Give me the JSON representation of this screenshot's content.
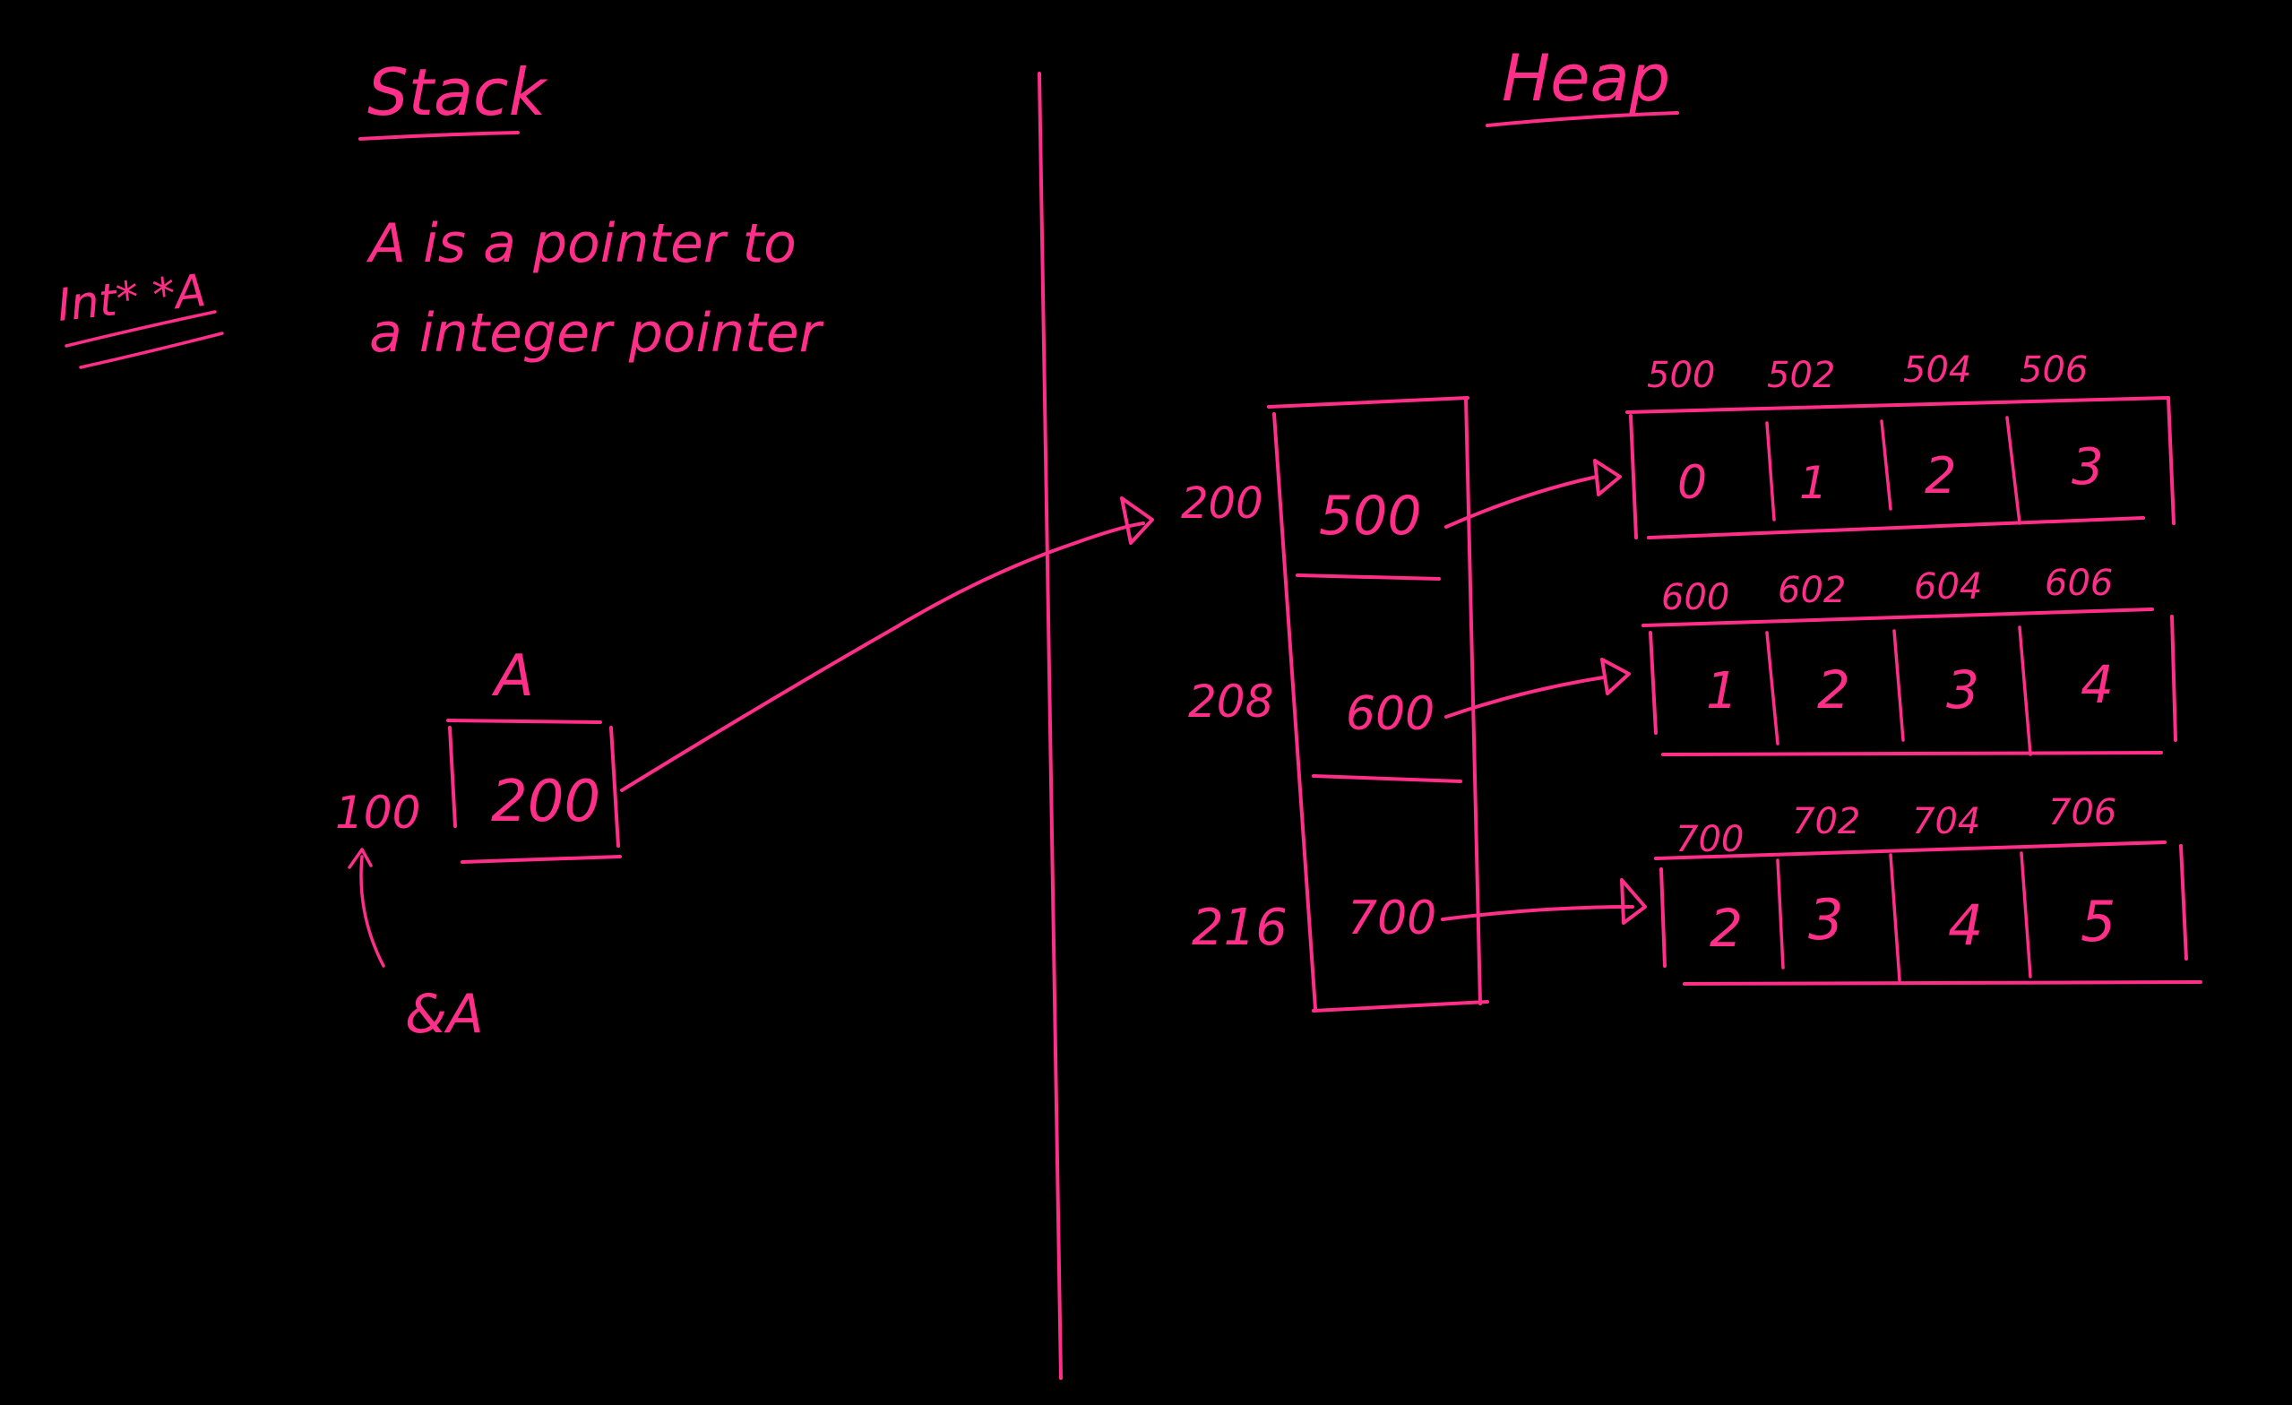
{
  "stack": {
    "title": "Stack",
    "declaration": "Int* *A",
    "description_line1": "A is a pointer to",
    "description_line2": "a integer pointer",
    "var_name": "A",
    "var_value": "200",
    "var_address": "100",
    "address_of": "&A"
  },
  "heap": {
    "title": "Heap",
    "pointer_array": {
      "addresses": [
        "200",
        "208",
        "216"
      ],
      "values": [
        "500",
        "600",
        "700"
      ]
    },
    "arrays": [
      {
        "addresses": [
          "500",
          "502",
          "504",
          "506"
        ],
        "values": [
          "0",
          "1",
          "2",
          "3"
        ]
      },
      {
        "addresses": [
          "600",
          "602",
          "604",
          "606"
        ],
        "values": [
          "1",
          "2",
          "3",
          "4"
        ]
      },
      {
        "addresses": [
          "700",
          "702",
          "704",
          "706"
        ],
        "values": [
          "2",
          "3",
          "4",
          "5"
        ]
      }
    ]
  },
  "colors": {
    "ink": "#ff2e88",
    "background": "#000000"
  }
}
